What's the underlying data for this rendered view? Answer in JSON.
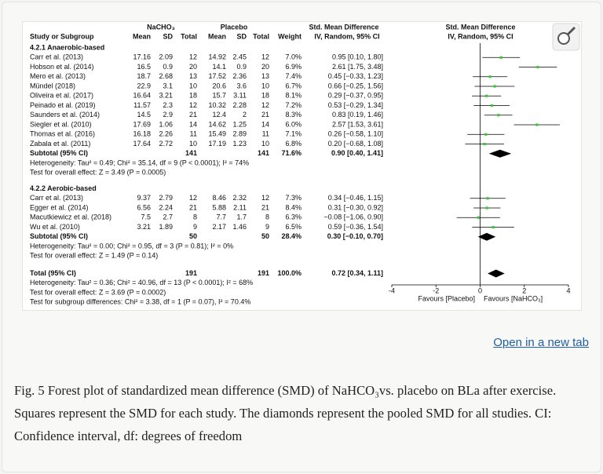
{
  "chart_data": {
    "type": "forest",
    "group_exp": "NaCHO₃",
    "group_ctrl": "Placebo",
    "est_title": "Std. Mean Difference",
    "est_sub": "IV, Random, 95% CI",
    "columns": {
      "study": "Study or Subgroup",
      "mean": "Mean",
      "sd": "SD",
      "total": "Total",
      "weight": "Weight"
    },
    "subgroups": [
      {
        "title": "4.2.1 Anaerobic-based",
        "studies": [
          {
            "name": "Carr et al. (2013)",
            "exp": [
              17.16,
              2.09,
              12
            ],
            "ctrl": [
              14.92,
              2.45,
              12
            ],
            "weight": "7.0%",
            "smd": 0.95,
            "lower": 0.1,
            "upper": 1.8,
            "label": "0.95 [0.10, 1.80]"
          },
          {
            "name": "Hobson et al. (2014)",
            "exp": [
              16.5,
              0.9,
              20
            ],
            "ctrl": [
              14.1,
              0.9,
              20
            ],
            "weight": "6.9%",
            "smd": 2.61,
            "lower": 1.75,
            "upper": 3.48,
            "label": "2.61 [1.75, 3.48]"
          },
          {
            "name": "Mero et al. (2013)",
            "exp": [
              18.7,
              2.68,
              13
            ],
            "ctrl": [
              17.52,
              2.36,
              13
            ],
            "weight": "7.4%",
            "smd": 0.45,
            "lower": -0.33,
            "upper": 1.23,
            "label": "0.45 [−0.33, 1.23]"
          },
          {
            "name": "Mündel (2018)",
            "exp": [
              22.9,
              3.1,
              10
            ],
            "ctrl": [
              20.6,
              3.6,
              10
            ],
            "weight": "6.7%",
            "smd": 0.66,
            "lower": -0.25,
            "upper": 1.56,
            "label": "0.66 [−0.25, 1.56]"
          },
          {
            "name": "Oliveira et al. (2017)",
            "exp": [
              16.64,
              3.21,
              18
            ],
            "ctrl": [
              15.7,
              3.11,
              18
            ],
            "weight": "8.1%",
            "smd": 0.29,
            "lower": -0.37,
            "upper": 0.95,
            "label": "0.29 [−0.37, 0.95]"
          },
          {
            "name": "Peinado et al. (2019)",
            "exp": [
              11.57,
              2.3,
              12
            ],
            "ctrl": [
              10.32,
              2.28,
              12
            ],
            "weight": "7.2%",
            "smd": 0.53,
            "lower": -0.29,
            "upper": 1.34,
            "label": "0.53 [−0.29, 1.34]"
          },
          {
            "name": "Saunders et al. (2014)",
            "exp": [
              14.5,
              2.9,
              21
            ],
            "ctrl": [
              12.4,
              2,
              21
            ],
            "weight": "8.3%",
            "smd": 0.83,
            "lower": 0.19,
            "upper": 1.46,
            "label": "0.83 [0.19, 1.46]"
          },
          {
            "name": "Siegler et al. (2010)",
            "exp": [
              17.69,
              1.06,
              14
            ],
            "ctrl": [
              14.62,
              1.25,
              14
            ],
            "weight": "6.0%",
            "smd": 2.57,
            "lower": 1.53,
            "upper": 3.61,
            "label": "2.57 [1.53, 3.61]"
          },
          {
            "name": "Thomas et al. (2016)",
            "exp": [
              16.18,
              2.26,
              11
            ],
            "ctrl": [
              15.49,
              2.89,
              11
            ],
            "weight": "7.1%",
            "smd": 0.26,
            "lower": -0.58,
            "upper": 1.1,
            "label": "0.26 [−0.58, 1.10]"
          },
          {
            "name": "Zabala et al. (2011)",
            "exp": [
              17.64,
              2.72,
              10
            ],
            "ctrl": [
              17.19,
              1.23,
              10
            ],
            "weight": "6.8%",
            "smd": 0.2,
            "lower": -0.68,
            "upper": 1.08,
            "label": "0.20 [−0.68, 1.08]"
          }
        ],
        "subtotal": {
          "name": "Subtotal (95% CI)",
          "exp_n": 141,
          "ctrl_n": 141,
          "weight": "71.6%",
          "smd": 0.9,
          "lower": 0.4,
          "upper": 1.41,
          "label": "0.90 [0.40, 1.41]"
        },
        "notes": [
          "Heterogeneity: Tau² = 0.49; Chi² = 35.14, df = 9 (P < 0.0001); I² = 74%",
          "Test for overall effect: Z = 3.49 (P = 0.0005)"
        ]
      },
      {
        "title": "4.2.2 Aerobic-based",
        "studies": [
          {
            "name": "Carr et al. (2013)",
            "exp": [
              9.37,
              2.79,
              12
            ],
            "ctrl": [
              8.46,
              2.32,
              12
            ],
            "weight": "7.3%",
            "smd": 0.34,
            "lower": -0.46,
            "upper": 1.15,
            "label": "0.34 [−0.46, 1.15]"
          },
          {
            "name": "Egger et al. (2014)",
            "exp": [
              6.56,
              2.24,
              21
            ],
            "ctrl": [
              5.88,
              2.11,
              21
            ],
            "weight": "8.4%",
            "smd": 0.31,
            "lower": -0.3,
            "upper": 0.92,
            "label": "0.31 [−0.30, 0.92]"
          },
          {
            "name": "Macutkiewicz et al. (2018)",
            "exp": [
              7.5,
              2.7,
              8
            ],
            "ctrl": [
              7.7,
              1.7,
              8
            ],
            "weight": "6.3%",
            "smd": -0.08,
            "lower": -1.06,
            "upper": 0.9,
            "label": "−0.08 [−1.06, 0.90]"
          },
          {
            "name": "Wu et al. (2010)",
            "exp": [
              3.21,
              1.89,
              9
            ],
            "ctrl": [
              2.17,
              1.46,
              9
            ],
            "weight": "6.5%",
            "smd": 0.59,
            "lower": -0.36,
            "upper": 1.54,
            "label": "0.59 [−0.36, 1.54]"
          }
        ],
        "subtotal": {
          "name": "Subtotal (95% CI)",
          "exp_n": 50,
          "ctrl_n": 50,
          "weight": "28.4%",
          "smd": 0.3,
          "lower": -0.1,
          "upper": 0.7,
          "label": "0.30 [−0.10, 0.70]"
        },
        "notes": [
          "Heterogeneity: Tau² = 0.00; Chi² = 0.95, df = 3 (P = 0.81); I² = 0%",
          "Test for overall effect: Z = 1.49 (P = 0.14)"
        ]
      }
    ],
    "total": {
      "name": "Total (95% CI)",
      "exp_n": 191,
      "ctrl_n": 191,
      "weight": "100.0%",
      "smd": 0.72,
      "lower": 0.34,
      "upper": 1.11,
      "label": "0.72 [0.34, 1.11]"
    },
    "total_notes": [
      "Heterogeneity: Tau² = 0.36; Chi² = 40.96, df = 13 (P < 0.0001); I² = 68%",
      "Test for overall effect: Z = 3.69 (P = 0.0002)",
      "Test for subgroup differences: Chi² = 3.38, df = 1 (P = 0.07), I² = 70.4%"
    ],
    "xlim": [
      -4,
      4
    ],
    "xticks": [
      -4,
      -2,
      0,
      2,
      4
    ],
    "x_labels": [
      "Favours [Placebo]",
      "Favours [NaHCO₃]"
    ],
    "color": "#33cc33"
  },
  "page": {
    "link": "Open in a new tab",
    "caption": "Fig. 5 Forest plot of standardized mean difference (SMD) of NaHCO₃vs. placebo on BLa after exercise. Squares represent the SMD for each study. The diamonds represent the pooled SMD for all studies. CI: Confidence interval, df: degrees of freedom"
  }
}
